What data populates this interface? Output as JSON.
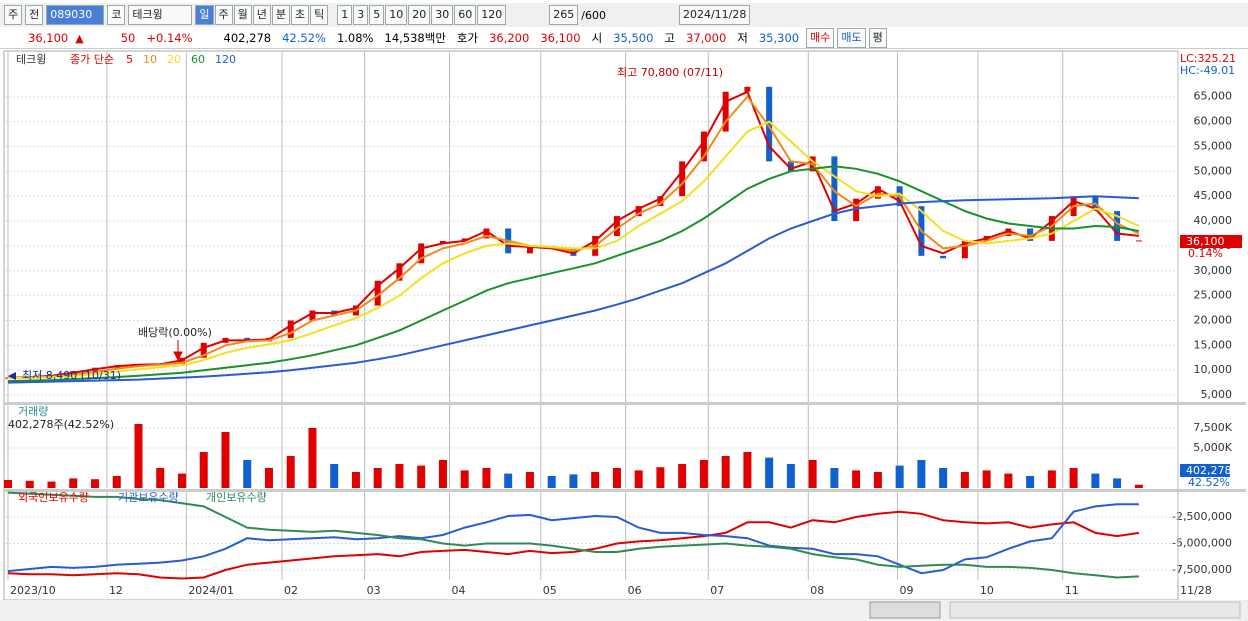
{
  "toolbar": {
    "market": "주",
    "prev": "전",
    "code": "089030",
    "type": "코",
    "name": "테크윙",
    "periods": [
      "일",
      "주",
      "월",
      "년",
      "분",
      "초",
      "틱"
    ],
    "intervals": [
      "1",
      "3",
      "5",
      "10",
      "20",
      "30",
      "60",
      "120"
    ],
    "count": "265",
    "max": "/600",
    "date": "2024/11/28"
  },
  "quote": {
    "price": "36,100",
    "arrow": "▲",
    "change": "50",
    "change_pct": "+0.14%",
    "volume": "402,278",
    "vol_ratio": "42.52%",
    "turnover": "1.08%",
    "amount": "14,538백만",
    "ask_label": "호가",
    "ask": "36,200",
    "bid": "36,100",
    "open_label": "시",
    "open": "35,500",
    "high_label": "고",
    "high": "37,000",
    "low_label": "저",
    "low": "35,300",
    "buy": "매수",
    "sell": "매도",
    "avg": "평"
  },
  "chart_data": [
    {
      "type": "candlestick",
      "name": "테크윙",
      "legend_title": "종가 단순",
      "lc": "LC:325.21",
      "hc": "HC:-49.01",
      "high_note": "최고 70,800 (07/11)",
      "low_note": "최저 8,490 (10/31)",
      "dividend_note": "배당락(0.00%)",
      "last_label": "36,100",
      "last_pct": "0.14%",
      "categories": [
        null,
        null,
        null,
        null,
        null,
        null,
        null,
        null,
        null,
        null,
        null,
        null,
        null,
        null,
        null,
        null,
        null,
        null,
        null,
        null,
        null,
        null,
        null,
        null,
        null,
        null,
        null,
        null,
        null,
        null,
        null,
        null,
        null,
        null,
        null,
        null,
        null,
        null,
        null,
        null,
        null,
        null,
        null,
        null,
        null,
        null,
        null,
        null,
        null,
        null,
        null,
        null,
        null
      ],
      "close": [
        8500,
        8700,
        9000,
        9800,
        10500,
        11000,
        11200,
        11300,
        12500,
        15500,
        16500,
        15800,
        16500,
        20000,
        22000,
        21000,
        23000,
        28000,
        31500,
        35500,
        36000,
        36500,
        38500,
        33500,
        35000,
        34500,
        33000,
        37000,
        41000,
        43000,
        45000,
        52000,
        58000,
        66000,
        67000,
        52000,
        50000,
        53000,
        40000,
        44500,
        47000,
        43000,
        33000,
        32500,
        36000,
        37000,
        38500,
        36000,
        41000,
        45000,
        42000,
        36000,
        36100
      ],
      "up_color": "#e00000",
      "down_color": "#1060d0",
      "series": [
        {
          "name": "5",
          "color": "#e00000",
          "values": [
            8500,
            8600,
            8900,
            9500,
            10200,
            10800,
            11100,
            11200,
            12000,
            14500,
            16000,
            16000,
            16200,
            19000,
            21500,
            21500,
            22500,
            27000,
            30500,
            34500,
            35500,
            36000,
            38000,
            35000,
            34800,
            34500,
            33500,
            36000,
            40000,
            42500,
            44500,
            50000,
            56000,
            64000,
            66000,
            55000,
            50500,
            52000,
            42000,
            43500,
            46500,
            44000,
            35000,
            33500,
            35500,
            36500,
            38000,
            36500,
            40000,
            44000,
            42500,
            37500,
            37000
          ]
        },
        {
          "name": "10",
          "color": "#f08a1c",
          "values": [
            8500,
            8550,
            8700,
            9100,
            9700,
            10300,
            10800,
            11100,
            11500,
            13000,
            15000,
            15800,
            16000,
            17500,
            20000,
            21000,
            22000,
            25000,
            28500,
            32500,
            34500,
            35500,
            37000,
            36000,
            35000,
            34700,
            34000,
            35000,
            38500,
            41500,
            43500,
            47500,
            53000,
            60000,
            65000,
            59000,
            52000,
            51500,
            46000,
            43000,
            45500,
            45000,
            38000,
            34500,
            35000,
            36000,
            37500,
            37000,
            39000,
            43000,
            43500,
            39500,
            37500
          ]
        },
        {
          "name": "20",
          "color": "#f5e020",
          "values": [
            8400,
            8450,
            8550,
            8800,
            9200,
            9700,
            10200,
            10600,
            11000,
            12000,
            13500,
            14500,
            15200,
            16000,
            17500,
            19000,
            20500,
            22500,
            25000,
            28500,
            31500,
            33500,
            35000,
            35500,
            35000,
            34800,
            34500,
            34500,
            36000,
            39000,
            41500,
            44000,
            48000,
            53000,
            58000,
            60000,
            56000,
            52000,
            49000,
            46000,
            45000,
            45500,
            42000,
            38000,
            36000,
            35500,
            36000,
            36500,
            37500,
            40000,
            42500,
            41000,
            39000
          ]
        },
        {
          "name": "60",
          "color": "#16922e",
          "values": [
            7800,
            7900,
            8000,
            8200,
            8400,
            8600,
            8900,
            9200,
            9500,
            10000,
            10500,
            11000,
            11500,
            12200,
            13000,
            14000,
            15000,
            16500,
            18000,
            20000,
            22000,
            24000,
            26000,
            27500,
            28500,
            29500,
            30500,
            31500,
            33000,
            34500,
            36000,
            38000,
            40500,
            43500,
            46500,
            48500,
            50000,
            50500,
            51000,
            50500,
            49500,
            48000,
            46000,
            44000,
            42000,
            40500,
            39500,
            39000,
            38500,
            38500,
            39000,
            38800,
            38000
          ]
        },
        {
          "name": "120",
          "color": "#2a5bd7",
          "values": [
            7500,
            7600,
            7700,
            7800,
            7900,
            8000,
            8100,
            8300,
            8500,
            8700,
            9000,
            9300,
            9600,
            10000,
            10500,
            11000,
            11500,
            12200,
            13000,
            14000,
            15000,
            16000,
            17000,
            18000,
            19000,
            20000,
            21000,
            22000,
            23200,
            24500,
            26000,
            27500,
            29500,
            31500,
            34000,
            36500,
            38500,
            40000,
            41500,
            42500,
            43000,
            43500,
            43800,
            44000,
            44200,
            44300,
            44400,
            44500,
            44600,
            44800,
            45000,
            44800,
            44600
          ]
        }
      ],
      "ylim": [
        3600,
        74000
      ],
      "yticks": [
        {
          "value": 5000,
          "label": "5,000"
        },
        {
          "value": 10000,
          "label": "10,000"
        },
        {
          "value": 15000,
          "label": "15,000"
        },
        {
          "value": 20000,
          "label": "20,000"
        },
        {
          "value": 25000,
          "label": "25,000"
        },
        {
          "value": 30000,
          "label": "30,000"
        },
        {
          "value": 35000,
          "label": "35,000"
        },
        {
          "value": 40000,
          "label": "40,000"
        },
        {
          "value": 45000,
          "label": "45,000"
        },
        {
          "value": 50000,
          "label": "50,000"
        },
        {
          "value": 55000,
          "label": "55,000"
        },
        {
          "value": 60000,
          "label": "60,000"
        },
        {
          "value": 65000,
          "label": "65,000"
        }
      ],
      "grid": true
    },
    {
      "type": "bar",
      "title": "거래량",
      "subtitle": "402,278주(42.52%)",
      "last_label": "402,278",
      "last_pct": "42.52%",
      "values": [
        1000000,
        900000,
        800000,
        1200000,
        1100000,
        1500000,
        8000000,
        2500000,
        1800000,
        4500000,
        7000000,
        3500000,
        2500000,
        4000000,
        7500000,
        3000000,
        2000000,
        2500000,
        3000000,
        2800000,
        3500000,
        2200000,
        2500000,
        1800000,
        2000000,
        1500000,
        1700000,
        2000000,
        2500000,
        2200000,
        2600000,
        3000000,
        3500000,
        4000000,
        4500000,
        3800000,
        3000000,
        3500000,
        2500000,
        2200000,
        2000000,
        2800000,
        3500000,
        2500000,
        2000000,
        2200000,
        1800000,
        1500000,
        2200000,
        2500000,
        1800000,
        1200000,
        402278
      ],
      "ylim": [
        0,
        10375000
      ],
      "yticks": [
        {
          "value": 5000000,
          "label": "5,000K"
        },
        {
          "value": 7500000,
          "label": "7,500K"
        }
      ],
      "grid": true
    },
    {
      "type": "line",
      "series": [
        {
          "name": "외국인보유수량",
          "color": "#e00000",
          "values": [
            -7800000,
            -7900000,
            -7900000,
            -8000000,
            -7900000,
            -7800000,
            -7900000,
            -8200000,
            -8300000,
            -8200000,
            -7500000,
            -7000000,
            -6800000,
            -6600000,
            -6400000,
            -6200000,
            -6100000,
            -6000000,
            -6200000,
            -5800000,
            -5700000,
            -5600000,
            -5800000,
            -6000000,
            -5700000,
            -5900000,
            -5800000,
            -5500000,
            -5000000,
            -4800000,
            -4700000,
            -4500000,
            -4300000,
            -4000000,
            -3000000,
            -3000000,
            -3500000,
            -2800000,
            -3000000,
            -2500000,
            -2200000,
            -2000000,
            -2200000,
            -2800000,
            -3000000,
            -3100000,
            -3000000,
            -3500000,
            -3200000,
            -3000000,
            -4000000,
            -4300000,
            -4000000
          ]
        },
        {
          "name": "기관보유수량",
          "color": "#2a5bd7",
          "values": [
            -7600000,
            -7400000,
            -7200000,
            -7300000,
            -7200000,
            -7000000,
            -6900000,
            -6800000,
            -6600000,
            -6200000,
            -5500000,
            -4500000,
            -4700000,
            -4600000,
            -4500000,
            -4400000,
            -4600000,
            -4500000,
            -4300000,
            -4500000,
            -4200000,
            -3500000,
            -3000000,
            -2400000,
            -2300000,
            -2800000,
            -2600000,
            -2400000,
            -2500000,
            -3500000,
            -4000000,
            -4000000,
            -4200000,
            -4300000,
            -4500000,
            -5200000,
            -5400000,
            -5500000,
            -6000000,
            -6000000,
            -6200000,
            -7000000,
            -7800000,
            -7500000,
            -6500000,
            -6300000,
            -5500000,
            -4800000,
            -4500000,
            -2000000,
            -1500000,
            -1300000,
            -1300000
          ]
        },
        {
          "name": "개인보유수량",
          "color": "#2e8b57",
          "values": [
            -200000,
            -300000,
            -400000,
            -500000,
            -600000,
            -600000,
            -800000,
            -900000,
            -1200000,
            -1500000,
            -2500000,
            -3500000,
            -3700000,
            -3800000,
            -3900000,
            -3800000,
            -4000000,
            -4200000,
            -4500000,
            -4600000,
            -5000000,
            -5200000,
            -5000000,
            -5000000,
            -5000000,
            -5200000,
            -5500000,
            -5800000,
            -5800000,
            -5500000,
            -5300000,
            -5200000,
            -5100000,
            -5000000,
            -5200000,
            -5300000,
            -5500000,
            -6000000,
            -6300000,
            -6500000,
            -7000000,
            -7200000,
            -7100000,
            -7000000,
            -7000000,
            -7200000,
            -7200000,
            -7300000,
            -7500000,
            -7800000,
            -8000000,
            -8200000,
            -8100000
          ]
        }
      ],
      "ylim": [
        -8440000,
        -140000
      ],
      "yticks": [
        {
          "value": -7500000,
          "label": "-7,500,000"
        },
        {
          "value": -5000000,
          "label": "-5,000,000"
        },
        {
          "value": -2500000,
          "label": "-2,500,000"
        }
      ],
      "grid": true,
      "xlim": [
        0,
        53.8
      ],
      "xticks": [
        {
          "value": 0,
          "label": "2023/10"
        },
        {
          "value": 4.55,
          "label": "12"
        },
        {
          "value": 8.2,
          "label": "2024/01"
        },
        {
          "value": 12.6,
          "label": "02"
        },
        {
          "value": 16.4,
          "label": "03"
        },
        {
          "value": 20.3,
          "label": "04"
        },
        {
          "value": 24.5,
          "label": "05"
        },
        {
          "value": 28.4,
          "label": "06"
        },
        {
          "value": 32.2,
          "label": "07"
        },
        {
          "value": 36.8,
          "label": "08"
        },
        {
          "value": 40.9,
          "label": "09"
        },
        {
          "value": 44.6,
          "label": "10"
        },
        {
          "value": 48.5,
          "label": "11"
        },
        {
          "value": 53.8,
          "label": "11/28"
        }
      ]
    }
  ]
}
